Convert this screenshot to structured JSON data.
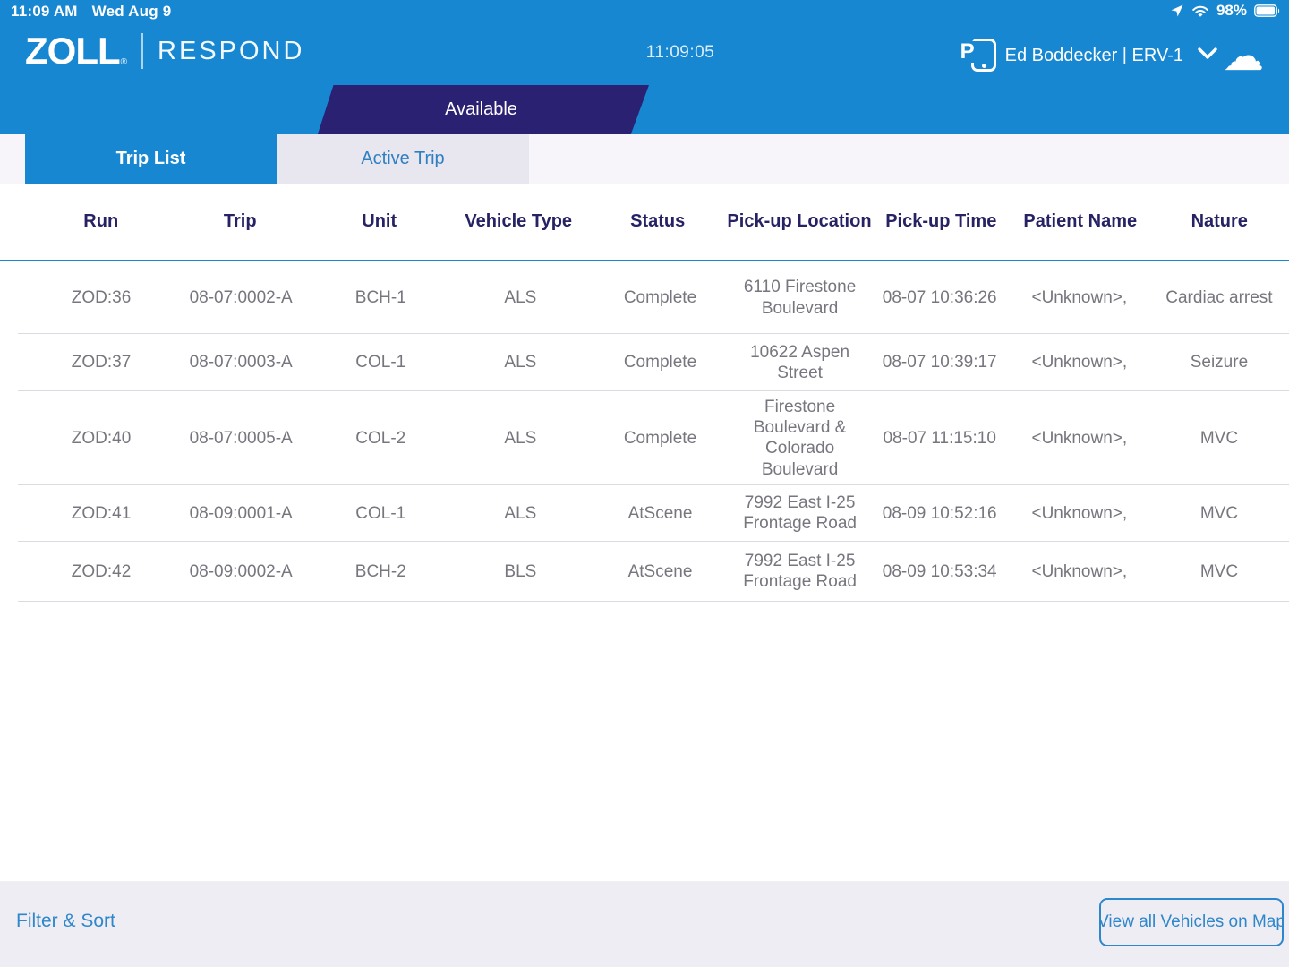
{
  "status_bar": {
    "time": "11:09 AM",
    "date": "Wed Aug 9",
    "battery": "98%"
  },
  "header": {
    "logo_primary": "ZOLL",
    "logo_registered": "®",
    "logo_secondary": "RESPOND",
    "clock": "11:09:05",
    "user": "Ed Boddecker | ERV-1",
    "device_icon_letter": "P",
    "cloud_icon": "☁"
  },
  "banner": {
    "label": "Available"
  },
  "tabs": [
    {
      "label": "Trip List",
      "active": true
    },
    {
      "label": "Active Trip",
      "active": false
    }
  ],
  "table": {
    "columns": [
      "Run",
      "Trip",
      "Unit",
      "Vehicle Type",
      "Status",
      "Pick-up Location",
      "Pick-up Time",
      "Patient Name",
      "Nature"
    ],
    "rows": [
      [
        "ZOD:36",
        "08-07:0002-A",
        "BCH-1",
        "ALS",
        "Complete",
        "6110 Firestone Boulevard",
        "08-07 10:36:26",
        "<Unknown>,",
        "Cardiac arrest"
      ],
      [
        "ZOD:37",
        "08-07:0003-A",
        "COL-1",
        "ALS",
        "Complete",
        "10622 Aspen Street",
        "08-07 10:39:17",
        "<Unknown>,",
        "Seizure"
      ],
      [
        "ZOD:40",
        "08-07:0005-A",
        "COL-2",
        "ALS",
        "Complete",
        "Firestone Boulevard & Colorado Boulevard",
        "08-07 11:15:10",
        "<Unknown>,",
        "MVC"
      ],
      [
        "ZOD:41",
        "08-09:0001-A",
        "COL-1",
        "ALS",
        "AtScene",
        "7992 East I-25 Frontage Road",
        "08-09 10:52:16",
        "<Unknown>,",
        "MVC"
      ],
      [
        "ZOD:42",
        "08-09:0002-A",
        "BCH-2",
        "BLS",
        "AtScene",
        "7992 East I-25 Frontage Road",
        "08-09 10:53:34",
        "<Unknown>,",
        "MVC"
      ]
    ]
  },
  "footer": {
    "filter_sort_label": "Filter & Sort",
    "view_map_label": "View all Vehicles on Map"
  },
  "colors": {
    "header_blue": "#1787d2",
    "banner_navy": "#2b2173",
    "table_header_navy": "#272264",
    "cell_gray": "#77767e",
    "link_blue": "#2e87ca",
    "inactive_tab_bg": "#e8e6ee",
    "footer_bg": "#efedf4"
  }
}
